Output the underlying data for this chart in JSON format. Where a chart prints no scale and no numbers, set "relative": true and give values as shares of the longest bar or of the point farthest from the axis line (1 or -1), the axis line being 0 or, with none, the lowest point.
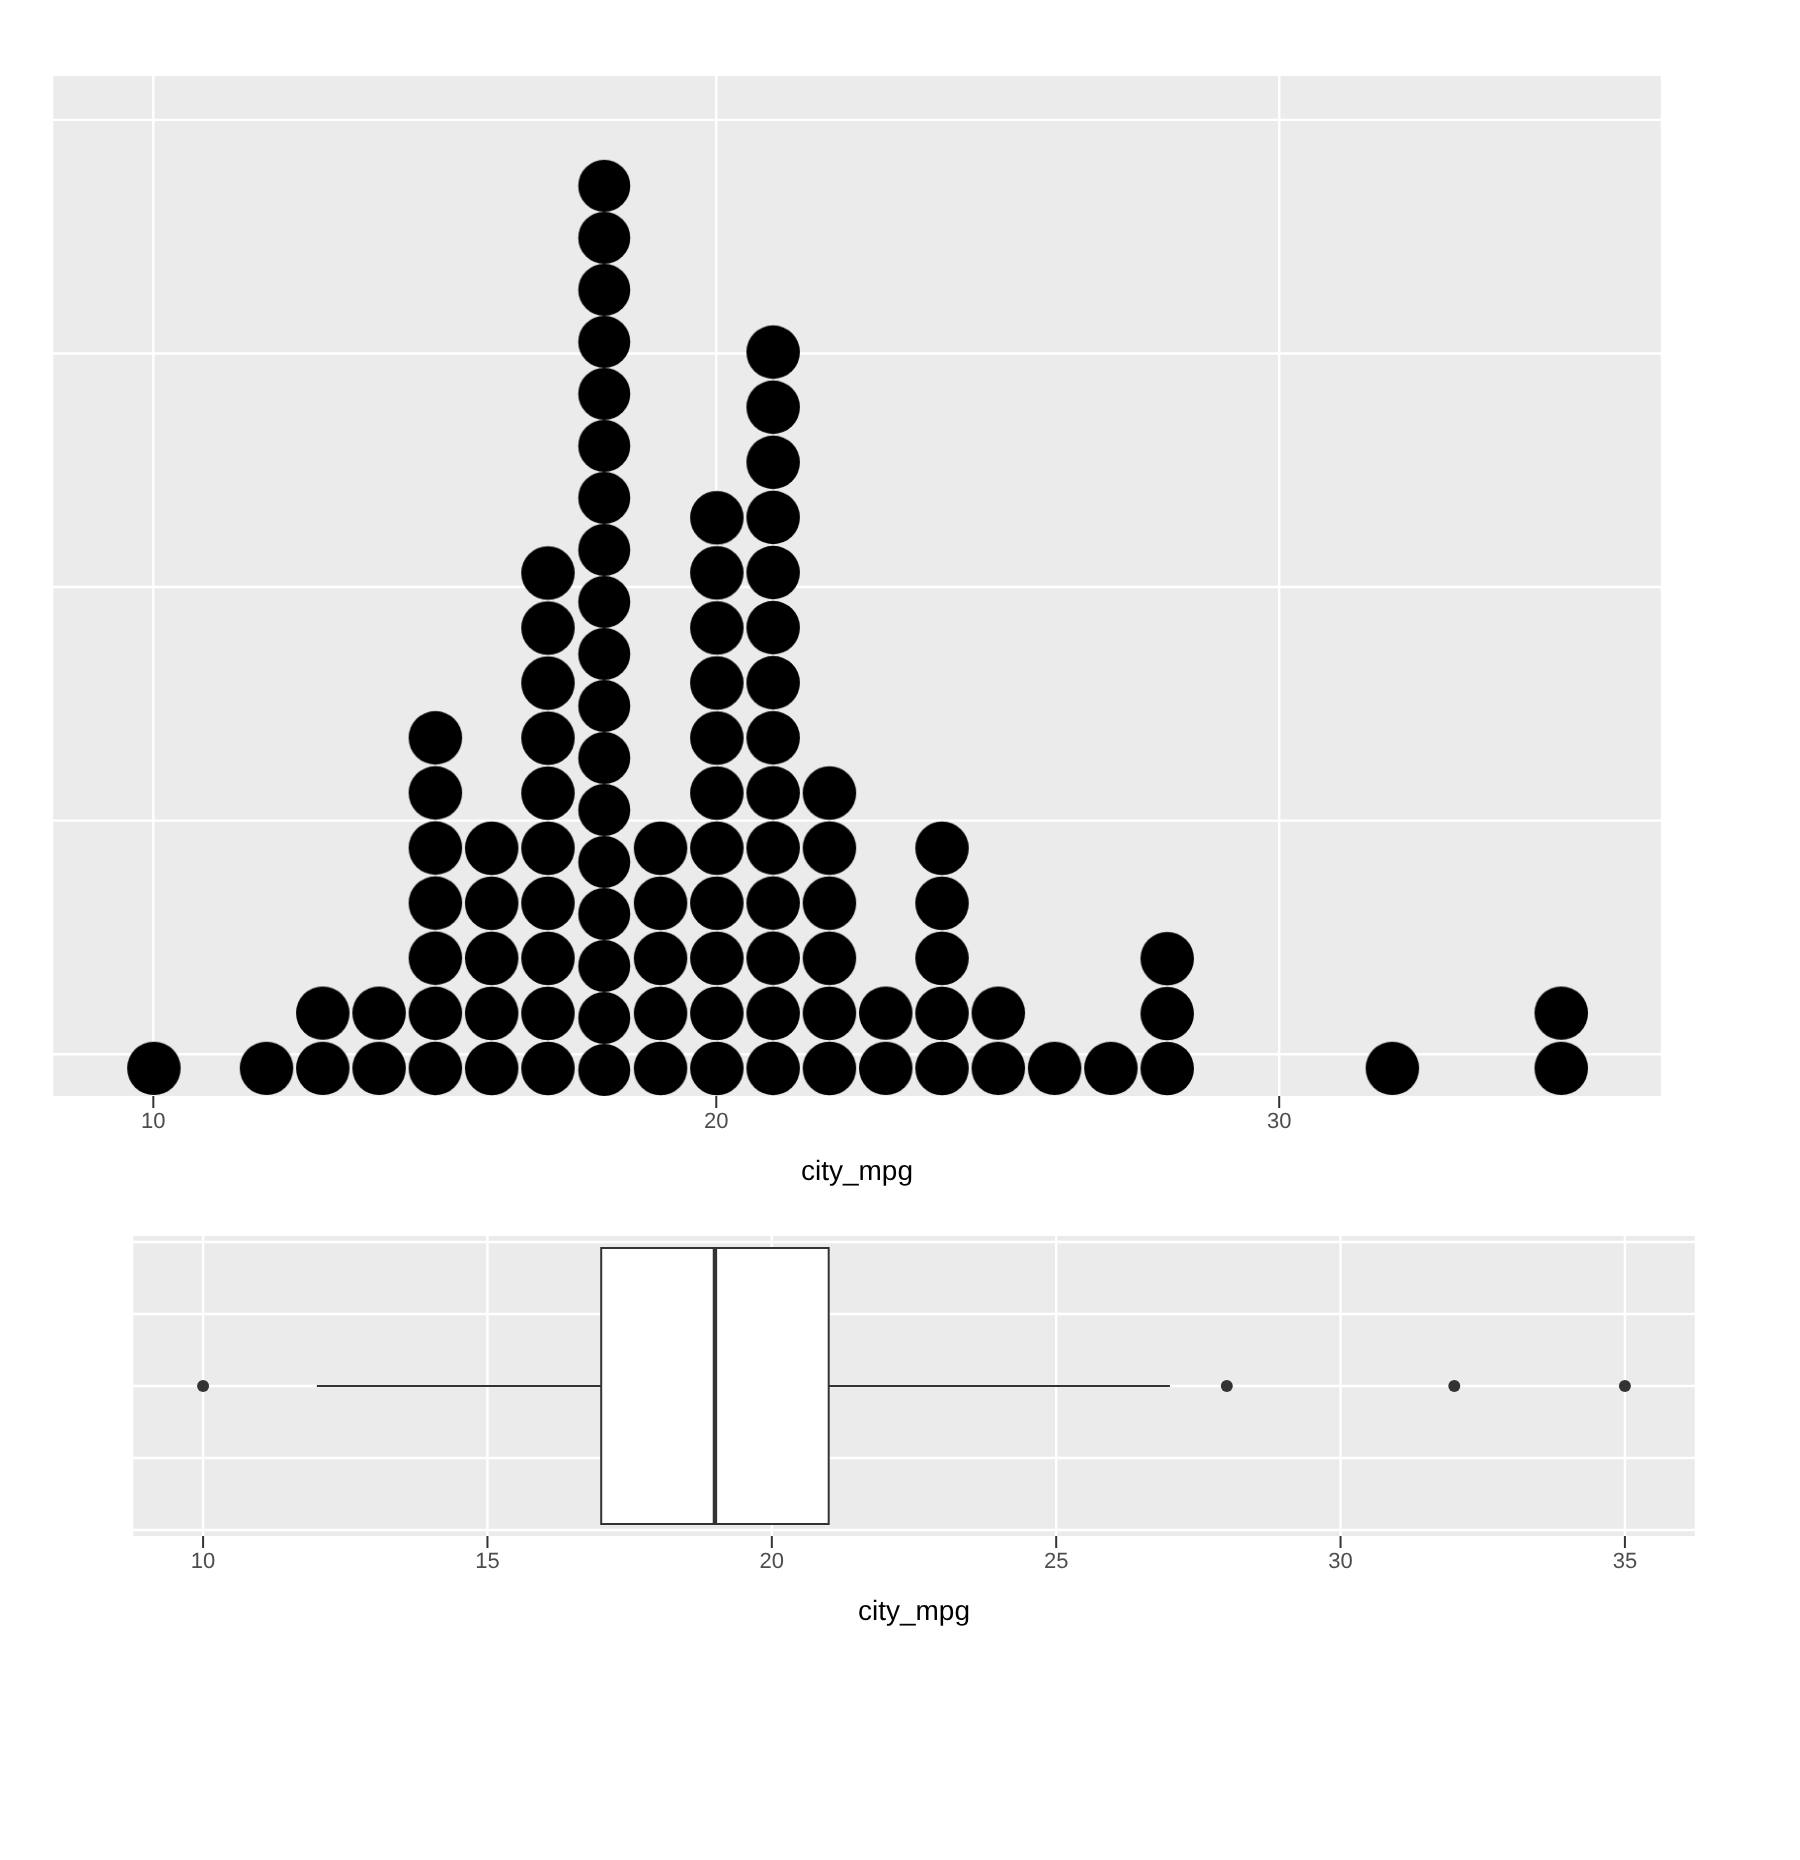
{
  "chart_data": [
    {
      "type": "bar",
      "relative": true,
      "x": [
        10,
        12,
        13,
        14,
        15,
        16,
        17,
        18,
        19,
        20,
        21,
        22,
        23,
        24,
        25,
        26,
        27,
        28,
        32,
        35
      ],
      "values": [
        0.059,
        0.059,
        0.118,
        0.118,
        0.412,
        0.294,
        0.588,
        1,
        0.294,
        0.647,
        0.824,
        0.353,
        0.118,
        0.294,
        0.118,
        0.059,
        0.059,
        0.176,
        0.059,
        0.118
      ],
      "color": "#000000",
      "xlim": [
        8.2,
        36.8
      ],
      "xticks": [
        10,
        20,
        30
      ],
      "xlabel": "city_mpg",
      "grid": true
    },
    {
      "type": "box",
      "orientation": "horizontal",
      "categories": [
        null
      ],
      "boxes": [
        {
          "low": 12,
          "q1": 17,
          "median": 19,
          "q3": 21,
          "high": 27,
          "outliers": [
            10,
            28,
            32,
            35
          ]
        }
      ],
      "xlim": [
        8.75,
        36.25
      ],
      "xticks": [
        10,
        15,
        20,
        25,
        30,
        35
      ],
      "xlabel": "city_mpg",
      "grid": true
    }
  ]
}
